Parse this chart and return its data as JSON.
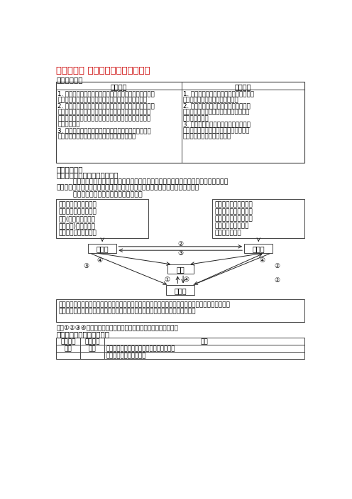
{
  "title": "》专题四「  地壳物质循环与地质作用",
  "title2": "【专题四】 地壳物质循环与地质作用",
  "sec1": "【考情分析】",
  "th1": "考纲解读",
  "th2": "命题规律",
  "col1_lines": [
    "1. 掌握内、外力作用的能量来源、表现形式及对地表形态",
    "的影响，理解岩石圈的物质循环，明确其过程及图示。",
    "2. 结合具体地貌景观，分析其成因及分布，理解内力作用",
    "形成的褶皂山、断块山和火山的成因，理解背斜、向斜、",
    "断层的特征及对地貌的影响及其在找水、找矿、工程建设",
    "方面的意义。",
    "3. 了解河流地貌的形成、分布及其对聚落分布和生产、",
    "生活的影响，理解地形对交通线路布局的影响。"
  ],
  "col2_lines": [
    "1. 以景观图、示意图等形式呈现信息，侧",
    "重考查地壳物质循环的过程和环节",
    "2. 以各类地质剖面图为背景材料，考查",
    "内力作用的表现形式、形成的地貌、地质",
    "构造的实践意义",
    "3. 以典型地貌的景观图、示意图等为背",
    "景，考查外力作用的表现形式、外力作用",
    "的过程及其对地表形态的影响"
  ],
  "sec2": "【知识归纳】",
  "sub1": "一、地质循环过程及其地理意义",
  "para1a": "        地质循环是高考中的常考点，以岩石的形成和转换为考点是主要考查方向。实际上三大",
  "para1b": "类岩石的相互转化过程就是地质循环过程，对此我们可以下两个方面对其突破。",
  "para2": "        框图理顺岩石之间的转换关系及其特点",
  "dl1": "由原有岩石在内力作用",
  "dl2": "产生的高温高压条件下",
  "dl3": "变质(重新结晶，形成",
  "dl4": "片理构造)而成，片麻",
  "dl5": "岩、大理岩为常见岩石",
  "dr1": "地表各类岩石经外力作",
  "dr2": "用转化而成，特点是具",
  "dr3": "有层理构造，有的含有",
  "dr4": "化石石灰岩、砂岩、",
  "dr5": "砖岩为常见岩石",
  "db1": "在内力作用下，岩浆如噴出地表冷凝则形成噴出岩，以玄武岩最为常见，多有气孔；岩浆如侵入地壳上",
  "db2": "部冷凝则形成侵入岩，以花岗岩最为常见，其质地紧密、坚硬，是良好的建筑材料",
  "cap": "图中①②③④分别表示冷却固化、外力作用、变质作用、重燔再生。",
  "sub2": "二、地质构造及其实际意义",
  "t2h1": "常见类型",
  "t2h2": "基本形态",
  "t2h3": "地貌",
  "t2r1c1": "褶皂",
  "t2r1c2": "背斜",
  "t2r1c3a": "外力作用加固岩石破碎，受侵蚀常形成谷地",
  "t2r1c3b": "常褶皂常形成高山大山脉",
  "bg": "#ffffff",
  "red": "#cc0000",
  "black": "#000000",
  "gray": "#444444"
}
